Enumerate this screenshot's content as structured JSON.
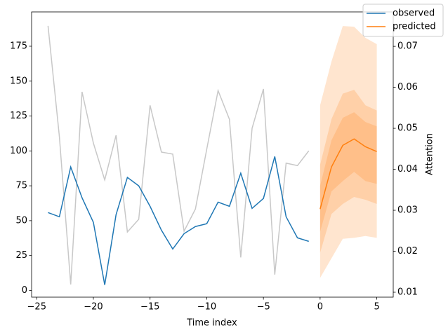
{
  "chart_data": {
    "type": "line",
    "xlabel": "Time index",
    "y2label": "Attention",
    "xlim": [
      -25.45,
      6.45
    ],
    "ylim": [
      -4.8,
      199.6
    ],
    "y2lim": [
      0.0088,
      0.0784
    ],
    "xticks": [
      {
        "value": -25,
        "label": "−25"
      },
      {
        "value": -20,
        "label": "−20"
      },
      {
        "value": -15,
        "label": "−15"
      },
      {
        "value": -10,
        "label": "−10"
      },
      {
        "value": -5,
        "label": "−5"
      },
      0,
      5
    ],
    "yticks": [
      0,
      25,
      50,
      75,
      100,
      125,
      150,
      175
    ],
    "y2ticks": [
      0.01,
      0.02,
      0.03,
      0.04,
      0.05,
      0.06,
      0.07
    ],
    "legend": "upper right",
    "series": [
      {
        "name": "observed",
        "color": "#1f77b4",
        "x": [
          -24,
          -23,
          -22,
          -21,
          -20,
          -19,
          -18,
          -17,
          -16,
          -15,
          -14,
          -13,
          -12,
          -11,
          -10,
          -9,
          -8,
          -7,
          -6,
          -5,
          -4,
          -3,
          -2,
          -1
        ],
        "values": [
          55.8,
          52.8,
          88.5,
          66.4,
          48.8,
          4,
          54.3,
          81,
          75,
          60.3,
          43.2,
          29.7,
          40.7,
          45.8,
          47.8,
          63.3,
          60.3,
          84,
          58.8,
          65.9,
          96,
          52.8,
          37.7,
          35.2
        ]
      },
      {
        "name": "predicted",
        "color": "#ff7f0e",
        "x": [
          0,
          1,
          2,
          3,
          4,
          5
        ],
        "values": [
          58.3,
          88.5,
          104,
          108.6,
          103,
          99.5
        ]
      },
      {
        "color": "#c8c8c8",
        "axis": "y2",
        "x": [
          -24,
          -23,
          -22,
          -21,
          -20,
          -19,
          -18,
          -17,
          -16,
          -15,
          -14,
          -13,
          -12,
          -11,
          -10,
          -9,
          -8,
          -7,
          -6,
          -5,
          -4,
          -3,
          -2,
          -1
        ],
        "values": [
          0.075,
          0.048,
          0.0119,
          0.0589,
          0.0464,
          0.0374,
          0.0483,
          0.0247,
          0.0278,
          0.0556,
          0.0442,
          0.0437,
          0.0249,
          0.0303,
          0.0449,
          0.0592,
          0.0522,
          0.0185,
          0.05,
          0.0596,
          0.0143,
          0.0415,
          0.0409,
          0.0445
        ]
      }
    ],
    "bands": [
      {
        "color": "#ff7f0e",
        "alpha": 0.2,
        "x": [
          0,
          1,
          2,
          3,
          4,
          5
        ],
        "lower": [
          9,
          23,
          37,
          37.7,
          39,
          37.7
        ],
        "upper": [
          132.7,
          164,
          189.5,
          189,
          181,
          176.5
        ]
      },
      {
        "color": "#ff7f0e",
        "alpha": 0.2,
        "x": [
          0,
          1,
          2,
          3,
          4,
          5
        ],
        "lower": [
          27,
          54.8,
          62,
          67,
          65,
          62
        ],
        "upper": [
          90,
          122.7,
          141,
          143.8,
          132.7,
          129
        ]
      },
      {
        "color": "#ff7f0e",
        "alpha": 0.2,
        "x": [
          0,
          1,
          2,
          3,
          4,
          5
        ],
        "lower": [
          42,
          71,
          78.4,
          85,
          78.4,
          76.4
        ],
        "upper": [
          75,
          107.6,
          123.7,
          127.7,
          120.7,
          117.6
        ]
      }
    ]
  }
}
